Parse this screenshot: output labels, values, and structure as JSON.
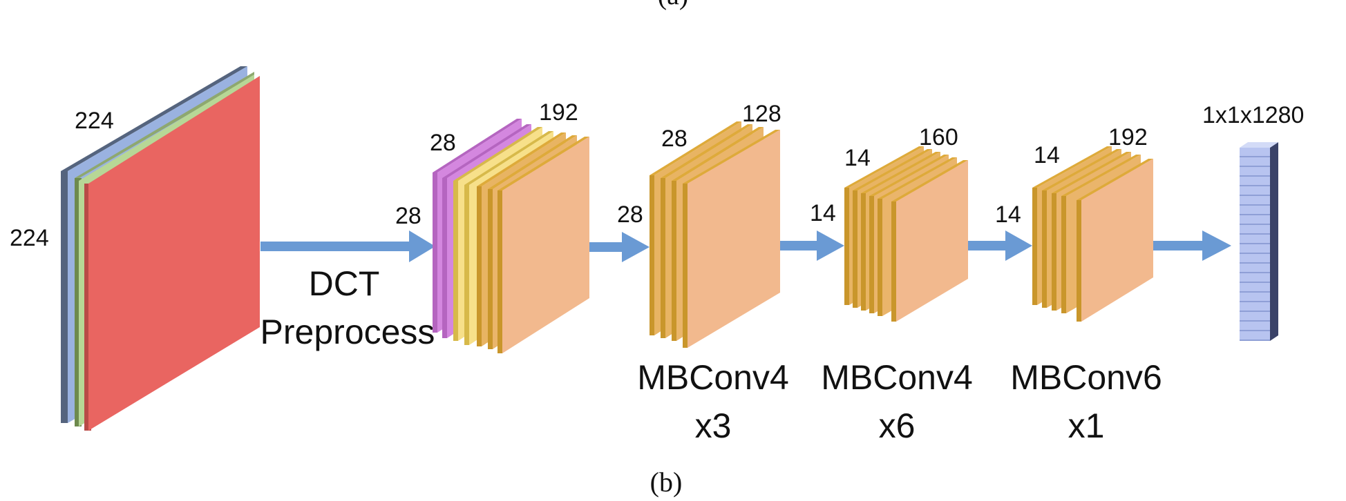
{
  "diagram": {
    "top_caption": "(a)",
    "caption": "(b)",
    "colors": {
      "arrow": "#6a9ad4",
      "input_red": "#e96561",
      "input_green": "#b7d796",
      "input_blue": "#9ab2e0",
      "input_navy": "#55647e",
      "feature_front": "#f2b98e",
      "feature_edge": "#deaa3a",
      "feature_yellow": "#f7e08a",
      "feature_purple": "#d487df",
      "output_block": "#b8c4f0",
      "output_shadow": "#3a4268"
    },
    "input": {
      "height_label": "224",
      "width_label": "224"
    },
    "dct": {
      "label_line1": "DCT",
      "label_line2": "Preprocess",
      "spatial": "28",
      "height": "28",
      "channels": "192"
    },
    "stage1": {
      "label_line1": "MBConv4",
      "label_line2": "x3",
      "spatial": "28",
      "height": "28",
      "channels": "128"
    },
    "stage2": {
      "label_line1": "MBConv4",
      "label_line2": "x6",
      "spatial": "14",
      "height": "14",
      "channels": "160"
    },
    "stage3": {
      "label_line1": "MBConv6",
      "label_line2": "x1",
      "spatial": "14",
      "height": "14",
      "channels": "192"
    },
    "output": {
      "dims": "1x1x1280"
    }
  }
}
